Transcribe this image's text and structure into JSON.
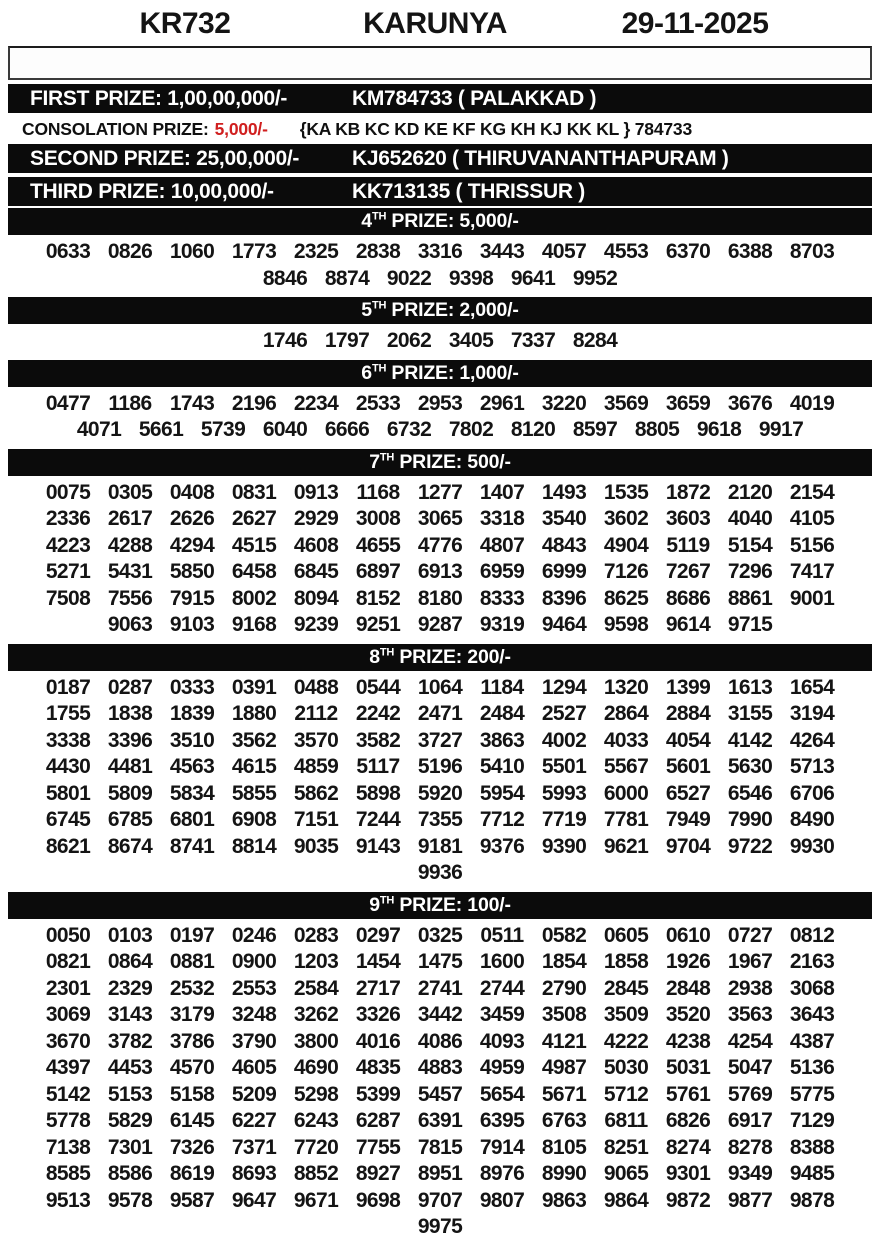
{
  "header": {
    "code": "KR732",
    "name": "KARUNYA",
    "date": "29-11-2025"
  },
  "main_prizes": [
    {
      "label": "FIRST PRIZE: 1,00,00,000/-",
      "winner": "KM784733 ( PALAKKAD )"
    },
    {
      "label": "SECOND PRIZE: 25,00,000/-",
      "winner": "KJ652620 ( THIRUVANANTHAPURAM )"
    },
    {
      "label": "THIRD PRIZE: 10,00,000/-",
      "winner": "KK713135 ( THRISSUR )"
    }
  ],
  "consolation": {
    "label": "CONSOLATION PRIZE:",
    "amount": "5,000/-",
    "series": "{KA KB KC KD KE KF KG KH KJ KK KL } 784733"
  },
  "colors": {
    "bar_bg": "#0b0b0b",
    "bar_text": "#ffffff",
    "accent_red": "#d01f1f"
  },
  "sections": [
    {
      "ordinal": "4",
      "sup": "TH",
      "rest": " PRIZE: 5,000/-",
      "rows": [
        [
          "0633",
          "0826",
          "1060",
          "1773",
          "2325",
          "2838",
          "3316",
          "3443",
          "4057",
          "4553",
          "6370",
          "6388",
          "8703"
        ],
        [
          "8846",
          "8874",
          "9022",
          "9398",
          "9641",
          "9952"
        ]
      ]
    },
    {
      "ordinal": "5",
      "sup": "TH",
      "rest": " PRIZE: 2,000/-",
      "rows": [
        [
          "1746",
          "1797",
          "2062",
          "3405",
          "7337",
          "8284"
        ]
      ]
    },
    {
      "ordinal": "6",
      "sup": "TH",
      "rest": " PRIZE: 1,000/-",
      "rows": [
        [
          "0477",
          "1186",
          "1743",
          "2196",
          "2234",
          "2533",
          "2953",
          "2961",
          "3220",
          "3569",
          "3659",
          "3676",
          "4019"
        ],
        [
          "4071",
          "5661",
          "5739",
          "6040",
          "6666",
          "6732",
          "7802",
          "8120",
          "8597",
          "8805",
          "9618",
          "9917"
        ]
      ]
    },
    {
      "ordinal": "7",
      "sup": "TH",
      "rest": " PRIZE: 500/-",
      "rows": [
        [
          "0075",
          "0305",
          "0408",
          "0831",
          "0913",
          "1168",
          "1277",
          "1407",
          "1493",
          "1535",
          "1872",
          "2120",
          "2154"
        ],
        [
          "2336",
          "2617",
          "2626",
          "2627",
          "2929",
          "3008",
          "3065",
          "3318",
          "3540",
          "3602",
          "3603",
          "4040",
          "4105"
        ],
        [
          "4223",
          "4288",
          "4294",
          "4515",
          "4608",
          "4655",
          "4776",
          "4807",
          "4843",
          "4904",
          "5119",
          "5154",
          "5156"
        ],
        [
          "5271",
          "5431",
          "5850",
          "6458",
          "6845",
          "6897",
          "6913",
          "6959",
          "6999",
          "7126",
          "7267",
          "7296",
          "7417"
        ],
        [
          "7508",
          "7556",
          "7915",
          "8002",
          "8094",
          "8152",
          "8180",
          "8333",
          "8396",
          "8625",
          "8686",
          "8861",
          "9001"
        ],
        [
          "9063",
          "9103",
          "9168",
          "9239",
          "9251",
          "9287",
          "9319",
          "9464",
          "9598",
          "9614",
          "9715"
        ]
      ]
    },
    {
      "ordinal": "8",
      "sup": "TH",
      "rest": " PRIZE: 200/-",
      "rows": [
        [
          "0187",
          "0287",
          "0333",
          "0391",
          "0488",
          "0544",
          "1064",
          "1184",
          "1294",
          "1320",
          "1399",
          "1613",
          "1654"
        ],
        [
          "1755",
          "1838",
          "1839",
          "1880",
          "2112",
          "2242",
          "2471",
          "2484",
          "2527",
          "2864",
          "2884",
          "3155",
          "3194"
        ],
        [
          "3338",
          "3396",
          "3510",
          "3562",
          "3570",
          "3582",
          "3727",
          "3863",
          "4002",
          "4033",
          "4054",
          "4142",
          "4264"
        ],
        [
          "4430",
          "4481",
          "4563",
          "4615",
          "4859",
          "5117",
          "5196",
          "5410",
          "5501",
          "5567",
          "5601",
          "5630",
          "5713"
        ],
        [
          "5801",
          "5809",
          "5834",
          "5855",
          "5862",
          "5898",
          "5920",
          "5954",
          "5993",
          "6000",
          "6527",
          "6546",
          "6706"
        ],
        [
          "6745",
          "6785",
          "6801",
          "6908",
          "7151",
          "7244",
          "7355",
          "7712",
          "7719",
          "7781",
          "7949",
          "7990",
          "8490"
        ],
        [
          "8621",
          "8674",
          "8741",
          "8814",
          "9035",
          "9143",
          "9181",
          "9376",
          "9390",
          "9621",
          "9704",
          "9722",
          "9930"
        ],
        [
          "9936"
        ]
      ]
    },
    {
      "ordinal": "9",
      "sup": "TH",
      "rest": " PRIZE: 100/-",
      "rows": [
        [
          "0050",
          "0103",
          "0197",
          "0246",
          "0283",
          "0297",
          "0325",
          "0511",
          "0582",
          "0605",
          "0610",
          "0727",
          "0812"
        ],
        [
          "0821",
          "0864",
          "0881",
          "0900",
          "1203",
          "1454",
          "1475",
          "1600",
          "1854",
          "1858",
          "1926",
          "1967",
          "2163"
        ],
        [
          "2301",
          "2329",
          "2532",
          "2553",
          "2584",
          "2717",
          "2741",
          "2744",
          "2790",
          "2845",
          "2848",
          "2938",
          "3068"
        ],
        [
          "3069",
          "3143",
          "3179",
          "3248",
          "3262",
          "3326",
          "3442",
          "3459",
          "3508",
          "3509",
          "3520",
          "3563",
          "3643"
        ],
        [
          "3670",
          "3782",
          "3786",
          "3790",
          "3800",
          "4016",
          "4086",
          "4093",
          "4121",
          "4222",
          "4238",
          "4254",
          "4387"
        ],
        [
          "4397",
          "4453",
          "4570",
          "4605",
          "4690",
          "4835",
          "4883",
          "4959",
          "4987",
          "5030",
          "5031",
          "5047",
          "5136"
        ],
        [
          "5142",
          "5153",
          "5158",
          "5209",
          "5298",
          "5399",
          "5457",
          "5654",
          "5671",
          "5712",
          "5761",
          "5769",
          "5775"
        ],
        [
          "5778",
          "5829",
          "6145",
          "6227",
          "6243",
          "6287",
          "6391",
          "6395",
          "6763",
          "6811",
          "6826",
          "6917",
          "7129"
        ],
        [
          "7138",
          "7301",
          "7326",
          "7371",
          "7720",
          "7755",
          "7815",
          "7914",
          "8105",
          "8251",
          "8274",
          "8278",
          "8388"
        ],
        [
          "8585",
          "8586",
          "8619",
          "8693",
          "8852",
          "8927",
          "8951",
          "8976",
          "8990",
          "9065",
          "9301",
          "9349",
          "9485"
        ],
        [
          "9513",
          "9578",
          "9587",
          "9647",
          "9671",
          "9698",
          "9707",
          "9807",
          "9863",
          "9864",
          "9872",
          "9877",
          "9878"
        ],
        [
          "9975"
        ]
      ]
    }
  ]
}
